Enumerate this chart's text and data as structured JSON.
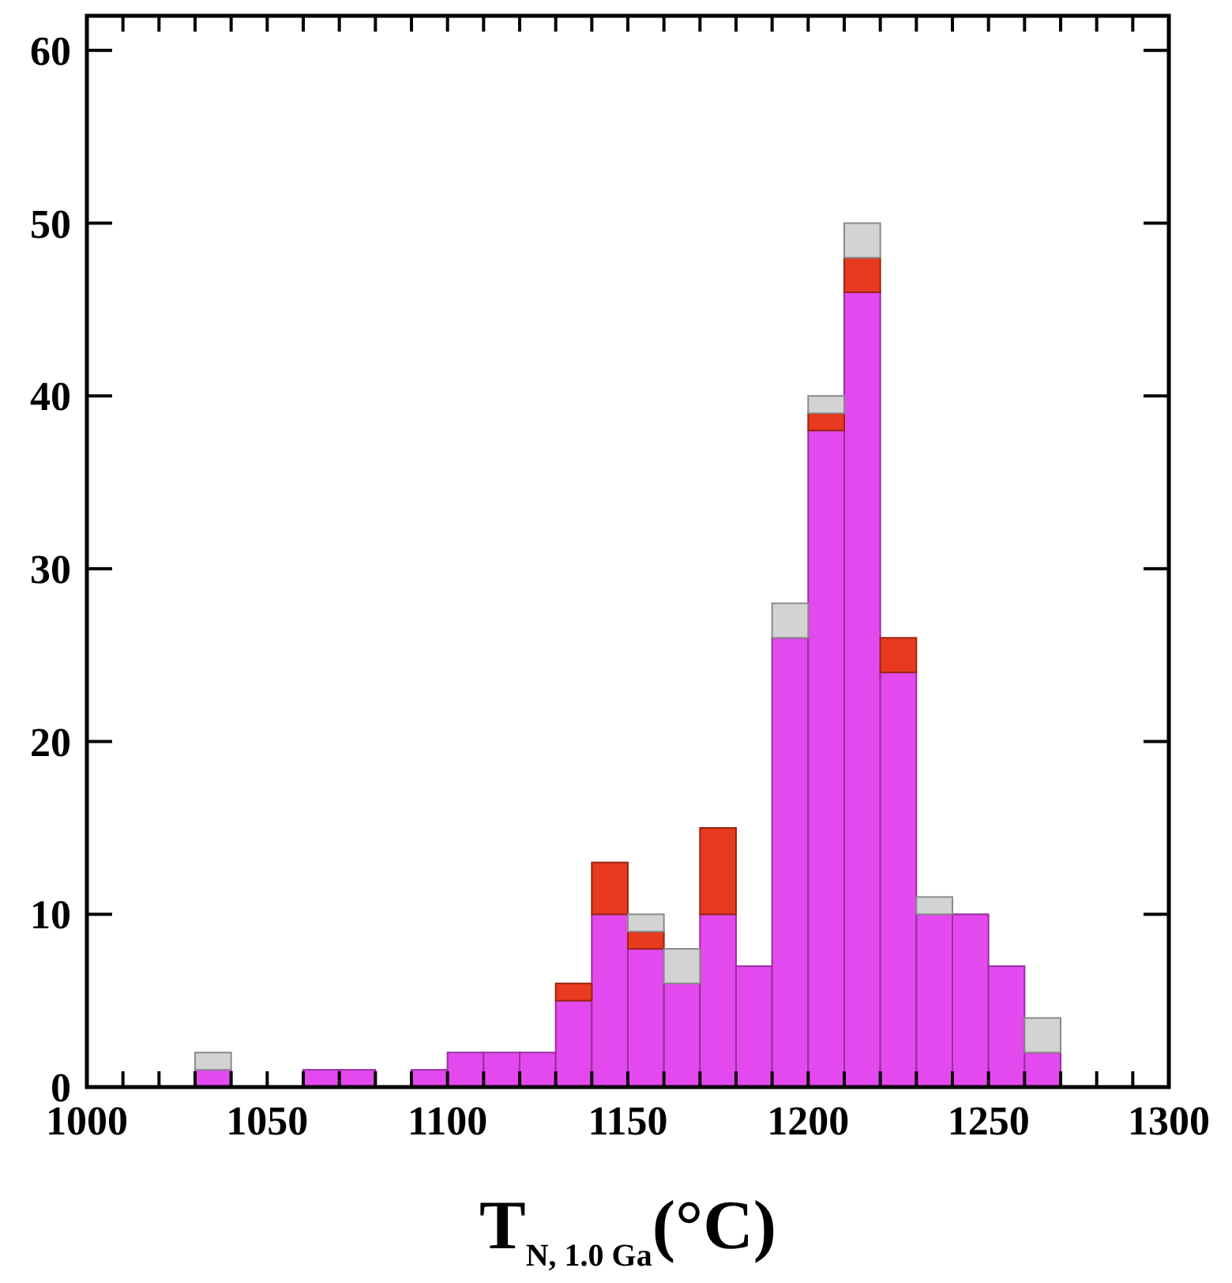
{
  "chart_data": {
    "type": "bar",
    "xlabel": "T$_{N, 1.0 Ga}$(°C)",
    "stacked": true,
    "x": [
      1035,
      1045,
      1055,
      1065,
      1075,
      1085,
      1095,
      1105,
      1115,
      1125,
      1135,
      1145,
      1155,
      1165,
      1175,
      1185,
      1195,
      1205,
      1215,
      1225,
      1235,
      1245,
      1255,
      1265
    ],
    "series": [
      {
        "color": "#e449ef",
        "values": [
          1,
          0,
          0,
          1,
          1,
          0,
          1,
          2,
          2,
          2,
          5,
          10,
          8,
          6,
          10,
          7,
          26,
          38,
          46,
          24,
          10,
          10,
          7,
          2
        ]
      },
      {
        "color": "#e83a1e",
        "values": [
          0,
          0,
          0,
          0,
          0,
          0,
          0,
          0,
          0,
          0,
          1,
          3,
          1,
          0,
          5,
          0,
          0,
          1,
          2,
          2,
          0,
          0,
          0,
          0
        ]
      },
      {
        "color": "#d3d3d3",
        "values": [
          1,
          0,
          0,
          0,
          0,
          0,
          0,
          0,
          0,
          0,
          0,
          0,
          1,
          2,
          0,
          0,
          2,
          1,
          2,
          0,
          1,
          0,
          0,
          2
        ]
      }
    ],
    "xlim": [
      1000,
      1300
    ],
    "ylim": [
      0,
      62
    ],
    "xticks": [
      1000,
      {
        "value": 1010,
        "label": null
      },
      {
        "value": 1020,
        "label": null
      },
      {
        "value": 1030,
        "label": null
      },
      {
        "value": 1040,
        "label": null
      },
      1050,
      {
        "value": 1060,
        "label": null
      },
      {
        "value": 1070,
        "label": null
      },
      {
        "value": 1080,
        "label": null
      },
      {
        "value": 1090,
        "label": null
      },
      1100,
      {
        "value": 1110,
        "label": null
      },
      {
        "value": 1120,
        "label": null
      },
      {
        "value": 1130,
        "label": null
      },
      {
        "value": 1140,
        "label": null
      },
      1150,
      {
        "value": 1160,
        "label": null
      },
      {
        "value": 1170,
        "label": null
      },
      {
        "value": 1180,
        "label": null
      },
      {
        "value": 1190,
        "label": null
      },
      1200,
      {
        "value": 1210,
        "label": null
      },
      {
        "value": 1220,
        "label": null
      },
      {
        "value": 1230,
        "label": null
      },
      {
        "value": 1240,
        "label": null
      },
      1250,
      {
        "value": 1260,
        "label": null
      },
      {
        "value": 1270,
        "label": null
      },
      {
        "value": 1280,
        "label": null
      },
      {
        "value": 1290,
        "label": null
      },
      1300
    ],
    "yticks": [
      0,
      10,
      20,
      30,
      40,
      50,
      60
    ],
    "grid": false
  }
}
